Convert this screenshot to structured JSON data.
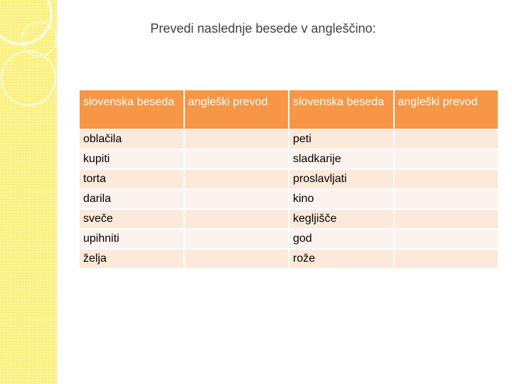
{
  "title": "Prevedi naslednje besede v angleščino:",
  "table": {
    "headers": [
      "slovenska beseda",
      "angleški prevod",
      "slovenska beseda",
      "angleški prevod"
    ],
    "rows": [
      {
        "left": "oblačila",
        "left_translation": "",
        "right": "peti",
        "right_translation": ""
      },
      {
        "left": "kupiti",
        "left_translation": "",
        "right": "sladkarije",
        "right_translation": ""
      },
      {
        "left": "torta",
        "left_translation": "",
        "right": "proslavljati",
        "right_translation": ""
      },
      {
        "left": "darila",
        "left_translation": "",
        "right": "kino",
        "right_translation": ""
      },
      {
        "left": "sveče",
        "left_translation": "",
        "right": "kegljišče",
        "right_translation": ""
      },
      {
        "left": "upihniti",
        "left_translation": "",
        "right": "god",
        "right_translation": ""
      },
      {
        "left": "želja",
        "left_translation": "",
        "right": "rože",
        "right_translation": ""
      }
    ]
  },
  "colors": {
    "header": "#f79646",
    "row_odd": "#fde9d9",
    "row_even": "#fcf3ee",
    "sidebar": "#fbf07c"
  }
}
